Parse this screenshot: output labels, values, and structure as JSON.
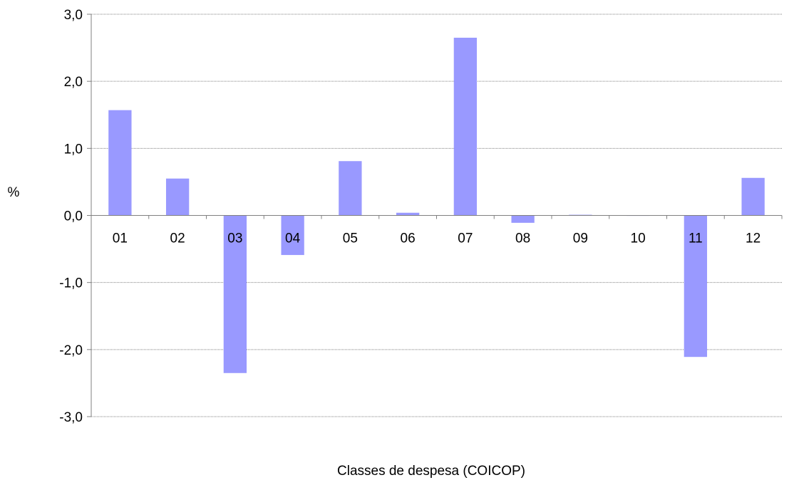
{
  "chart_data": {
    "type": "bar",
    "categories": [
      "01",
      "02",
      "03",
      "04",
      "05",
      "06",
      "07",
      "08",
      "09",
      "10",
      "11",
      "12"
    ],
    "values": [
      1.57,
      0.55,
      -2.35,
      -0.59,
      0.81,
      0.04,
      2.65,
      -0.11,
      0.01,
      0.0,
      -2.11,
      0.56
    ],
    "xlabel": "Classes de despesa (COICOP)",
    "ylabel": "%",
    "ylim": [
      -3.0,
      3.0
    ],
    "yticks": [
      "-3,0",
      "-2,0",
      "-1,0",
      "0,0",
      "1,0",
      "2,0",
      "3,0"
    ],
    "grid": true,
    "bar_color": "#9999ff",
    "grid_color": "#808080"
  }
}
